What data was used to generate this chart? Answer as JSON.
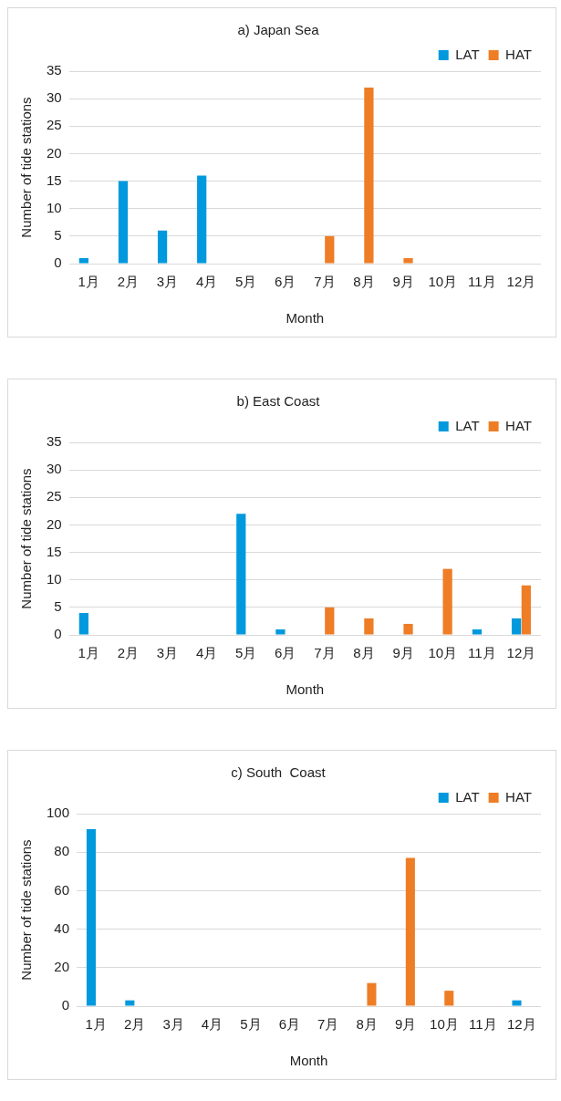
{
  "chart_data": [
    {
      "type": "bar",
      "title": "a) Japan Sea",
      "xlabel": "Month",
      "ylabel": "Number of tide stations",
      "categories": [
        "1月",
        "2月",
        "3月",
        "4月",
        "5月",
        "6月",
        "7月",
        "8月",
        "9月",
        "10月",
        "11月",
        "12月"
      ],
      "series": [
        {
          "name": "LAT",
          "color": "#0099dd",
          "values": [
            1,
            15,
            6,
            16,
            0,
            0,
            0,
            0,
            0,
            0,
            0,
            0
          ]
        },
        {
          "name": "HAT",
          "color": "#ee7d26",
          "values": [
            0,
            0,
            0,
            0,
            0,
            0,
            5,
            32,
            1,
            0,
            0,
            0
          ]
        }
      ],
      "ylim": [
        0,
        35
      ],
      "yticks": [
        0,
        5,
        10,
        15,
        20,
        25,
        30,
        35
      ],
      "grid": "y",
      "legend": "top right"
    },
    {
      "type": "bar",
      "title": "b) East Coast",
      "xlabel": "Month",
      "ylabel": "Number of tide stations",
      "categories": [
        "1月",
        "2月",
        "3月",
        "4月",
        "5月",
        "6月",
        "7月",
        "8月",
        "9月",
        "10月",
        "11月",
        "12月"
      ],
      "series": [
        {
          "name": "LAT",
          "color": "#0099dd",
          "values": [
            4,
            0,
            0,
            0,
            22,
            1,
            0,
            0,
            0,
            0,
            1,
            3
          ]
        },
        {
          "name": "HAT",
          "color": "#ee7d26",
          "values": [
            0,
            0,
            0,
            0,
            0,
            0,
            5,
            3,
            2,
            12,
            0,
            9
          ]
        }
      ],
      "ylim": [
        0,
        35
      ],
      "yticks": [
        0,
        5,
        10,
        15,
        20,
        25,
        30,
        35
      ],
      "grid": "y",
      "legend": "top right"
    },
    {
      "type": "bar",
      "title": "c) South  Coast",
      "xlabel": "Month",
      "ylabel": "Number of tide stations",
      "categories": [
        "1月",
        "2月",
        "3月",
        "4月",
        "5月",
        "6月",
        "7月",
        "8月",
        "9月",
        "10月",
        "11月",
        "12月"
      ],
      "series": [
        {
          "name": "LAT",
          "color": "#0099dd",
          "values": [
            92,
            3,
            0,
            0,
            0,
            0,
            0,
            0,
            0,
            0,
            0,
            3
          ]
        },
        {
          "name": "HAT",
          "color": "#ee7d26",
          "values": [
            0,
            0,
            0,
            0,
            0,
            0,
            0,
            12,
            77,
            8,
            0,
            0
          ]
        }
      ],
      "ylim": [
        0,
        100
      ],
      "yticks": [
        0,
        20,
        40,
        60,
        80,
        100
      ],
      "grid": "y",
      "legend": "top right"
    }
  ]
}
